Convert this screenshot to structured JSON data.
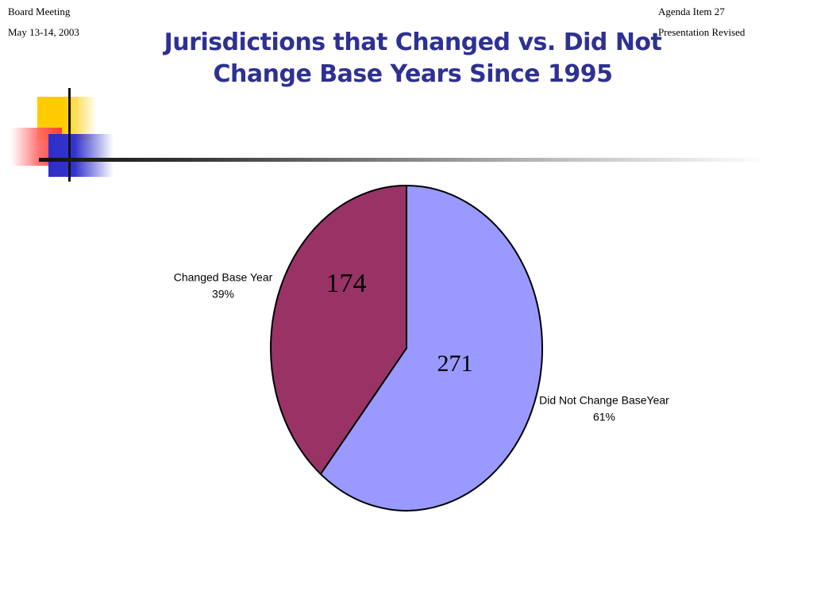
{
  "header": {
    "left_line1": "Board Meeting",
    "left_line2": "May 13-14, 2003",
    "right_line1": "Agenda Item 27",
    "right_line2": "Presentation Revised"
  },
  "slide": {
    "title_line1": "Jurisdictions that Changed vs. Did Not",
    "title_line2": "Change Base Years Since 1995"
  },
  "chart_data": {
    "type": "pie",
    "title": "Jurisdictions that Changed vs. Did Not Change Base Years Since 1995",
    "slices": [
      {
        "name": "Did Not Change BaseYear",
        "value": 271,
        "value_label": "271",
        "percent_label": "61%",
        "color": "#9999ff"
      },
      {
        "name": "Changed Base Year",
        "value": 174,
        "value_label": "174",
        "percent_label": "39%",
        "color": "#993366"
      }
    ],
    "start_angle": "12 o'clock",
    "direction": "clockwise",
    "legend": "none (slice labels outside the pie)"
  }
}
